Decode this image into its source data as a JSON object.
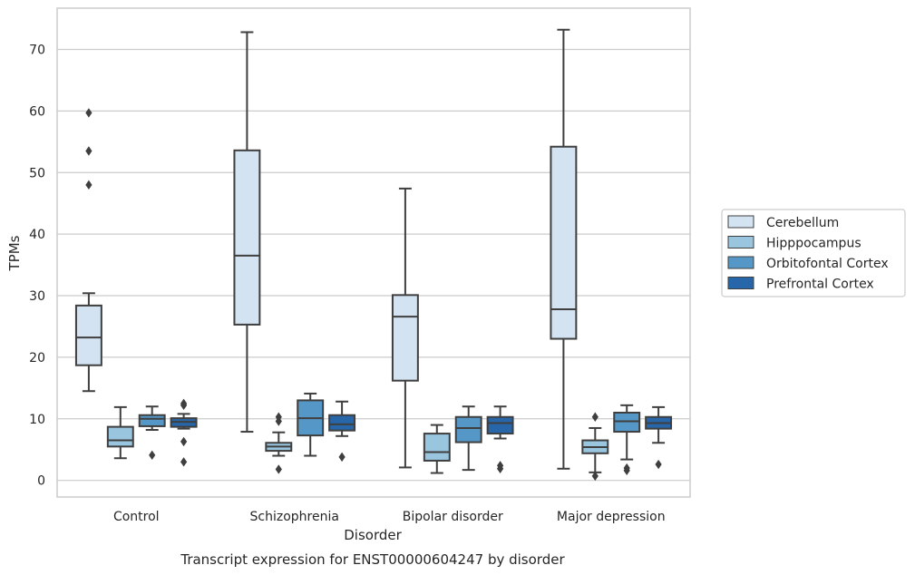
{
  "chart_data": {
    "type": "box",
    "title": "Transcript expression for ENST00000604247 by disorder",
    "xlabel": "Disorder",
    "ylabel": "TPMs",
    "ylim": [
      -2.7,
      76.7
    ],
    "yticks": [
      0,
      10,
      20,
      30,
      40,
      50,
      60,
      70
    ],
    "grid": "horizontal",
    "legend_position": "right",
    "categories": [
      "Control",
      "Schizophrenia",
      "Bipolar disorder",
      "Major depression"
    ],
    "series": [
      {
        "name": "Cerebellum",
        "color": "#d3e3f2",
        "boxes": [
          {
            "whislo": 14.5,
            "q1": 18.7,
            "med": 23.2,
            "q3": 28.4,
            "whishi": 30.4,
            "fliers": [
              48.0,
              53.5,
              59.7
            ]
          },
          {
            "whislo": 7.9,
            "q1": 25.3,
            "med": 36.5,
            "q3": 53.6,
            "whishi": 72.8,
            "fliers": []
          },
          {
            "whislo": 2.1,
            "q1": 16.2,
            "med": 26.6,
            "q3": 30.1,
            "whishi": 47.4,
            "fliers": []
          },
          {
            "whislo": 1.9,
            "q1": 23.0,
            "med": 27.8,
            "q3": 54.2,
            "whishi": 73.2,
            "fliers": []
          }
        ]
      },
      {
        "name": "Hipppocampus",
        "color": "#9ac5df",
        "boxes": [
          {
            "whislo": 3.6,
            "q1": 5.5,
            "med": 6.5,
            "q3": 8.7,
            "whishi": 11.9,
            "fliers": []
          },
          {
            "whislo": 4.0,
            "q1": 4.8,
            "med": 5.5,
            "q3": 6.1,
            "whishi": 7.8,
            "fliers": [
              1.8,
              9.6,
              10.3
            ]
          },
          {
            "whislo": 1.2,
            "q1": 3.2,
            "med": 4.6,
            "q3": 7.6,
            "whishi": 9.0,
            "fliers": []
          },
          {
            "whislo": 1.3,
            "q1": 4.4,
            "med": 5.4,
            "q3": 6.5,
            "whishi": 8.5,
            "fliers": [
              0.7,
              10.3
            ]
          }
        ]
      },
      {
        "name": "Orbitofontal Cortex",
        "color": "#5598c7",
        "boxes": [
          {
            "whislo": 8.2,
            "q1": 8.8,
            "med": 10.0,
            "q3": 10.6,
            "whishi": 12.0,
            "fliers": [
              4.1
            ]
          },
          {
            "whislo": 4.0,
            "q1": 7.3,
            "med": 10.1,
            "q3": 13.0,
            "whishi": 14.1,
            "fliers": []
          },
          {
            "whislo": 1.7,
            "q1": 6.2,
            "med": 8.5,
            "q3": 10.3,
            "whishi": 12.0,
            "fliers": []
          },
          {
            "whislo": 3.4,
            "q1": 7.9,
            "med": 9.6,
            "q3": 11.0,
            "whishi": 12.2,
            "fliers": [
              1.6,
              2.0
            ]
          }
        ]
      },
      {
        "name": "Prefrontal Cortex",
        "color": "#2766a8",
        "boxes": [
          {
            "whislo": 8.4,
            "q1": 8.7,
            "med": 9.5,
            "q3": 10.1,
            "whishi": 10.8,
            "fliers": [
              3.0,
              6.3,
              12.2,
              12.5
            ]
          },
          {
            "whislo": 7.2,
            "q1": 8.1,
            "med": 9.1,
            "q3": 10.6,
            "whishi": 12.8,
            "fliers": [
              3.8
            ]
          },
          {
            "whislo": 6.8,
            "q1": 7.6,
            "med": 9.3,
            "q3": 10.3,
            "whishi": 12.0,
            "fliers": [
              1.9,
              2.4
            ]
          },
          {
            "whislo": 6.1,
            "q1": 8.4,
            "med": 9.3,
            "q3": 10.3,
            "whishi": 11.9,
            "fliers": [
              2.6
            ]
          }
        ]
      }
    ]
  }
}
